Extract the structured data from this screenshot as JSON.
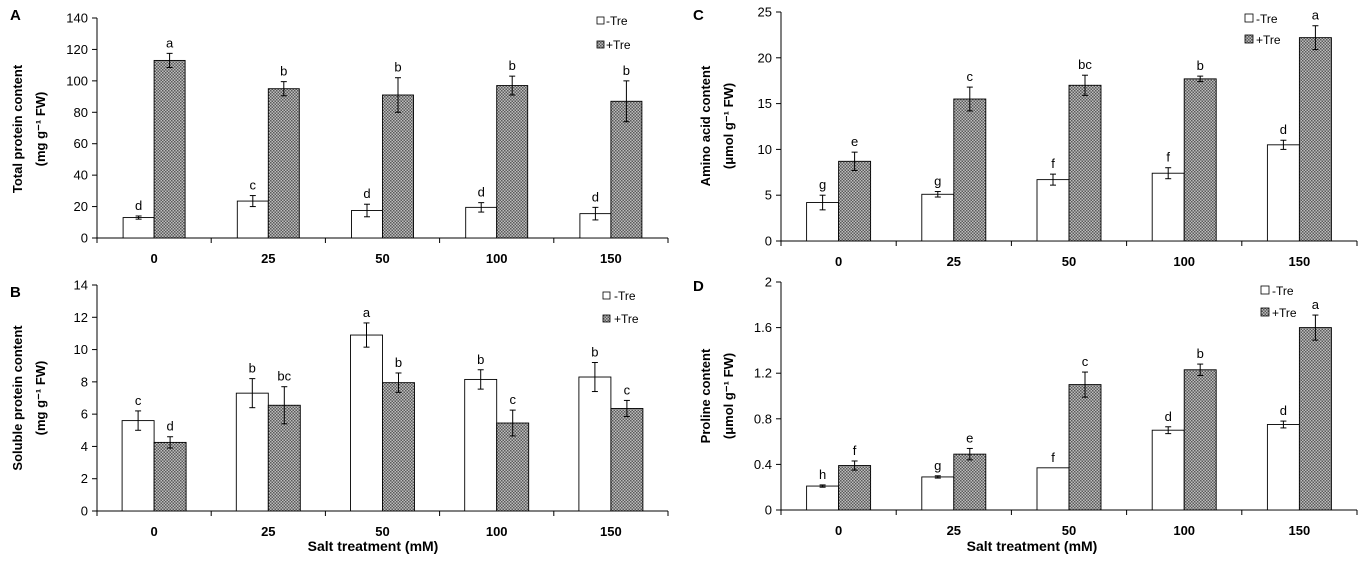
{
  "figure": {
    "xlabel_bottom": "Salt treatment (mM)",
    "legend": {
      "minus": "-Tre",
      "plus": "+Tre"
    },
    "colors": {
      "minus_fill": "#ffffff",
      "plus_fill": "#8c8c8c",
      "axis": "#000000"
    }
  },
  "chart_data": [
    {
      "panel": "A",
      "type": "bar",
      "ylabel": "Total protein content",
      "yunit": "(mg g⁻¹ FW)",
      "xlabel": "",
      "categories": [
        "0",
        "25",
        "50",
        "100",
        "150"
      ],
      "ylim": [
        0,
        140
      ],
      "yticks": [
        "0",
        "20",
        "40",
        "60",
        "80",
        "100",
        "120",
        "140"
      ],
      "legend_position": "top-right",
      "series": [
        {
          "name": "-Tre",
          "values": [
            13,
            23.5,
            17.5,
            19.5,
            15.5
          ],
          "errors": [
            1,
            3.5,
            4,
            3,
            4
          ],
          "letters": [
            "d",
            "c",
            "d",
            "d",
            "d"
          ]
        },
        {
          "name": "+Tre",
          "values": [
            113,
            95,
            91,
            97,
            87
          ],
          "errors": [
            4.5,
            4.5,
            11,
            6,
            13
          ],
          "letters": [
            "a",
            "b",
            "b",
            "b",
            "b"
          ]
        }
      ]
    },
    {
      "panel": "B",
      "type": "bar",
      "ylabel": "Soluble protein content",
      "yunit": "(mg g⁻¹ FW)",
      "xlabel": "Salt treatment (mM)",
      "categories": [
        "0",
        "25",
        "50",
        "100",
        "150"
      ],
      "ylim": [
        0,
        14
      ],
      "yticks": [
        "0",
        "2",
        "4",
        "6",
        "8",
        "10",
        "12",
        "14"
      ],
      "legend_position": "top-right",
      "series": [
        {
          "name": "-Tre",
          "values": [
            5.6,
            7.3,
            10.9,
            8.15,
            8.3
          ],
          "errors": [
            0.6,
            0.9,
            0.75,
            0.6,
            0.9
          ],
          "letters": [
            "c",
            "b",
            "a",
            "b",
            "b"
          ]
        },
        {
          "name": "+Tre",
          "values": [
            4.25,
            6.55,
            7.95,
            5.45,
            6.35
          ],
          "errors": [
            0.35,
            1.15,
            0.6,
            0.8,
            0.5
          ],
          "letters": [
            "d",
            "bc",
            "b",
            "c",
            "c"
          ]
        }
      ]
    },
    {
      "panel": "C",
      "type": "bar",
      "ylabel": "Amino acid content",
      "yunit": "(μmol g⁻¹ FW)",
      "xlabel": "",
      "categories": [
        "0",
        "25",
        "50",
        "100",
        "150"
      ],
      "ylim": [
        0,
        25
      ],
      "yticks": [
        "0",
        "5",
        "10",
        "15",
        "20",
        "25"
      ],
      "legend_position": "top-right",
      "series": [
        {
          "name": "-Tre",
          "values": [
            4.2,
            5.1,
            6.7,
            7.4,
            10.5
          ],
          "errors": [
            0.8,
            0.3,
            0.6,
            0.6,
            0.5
          ],
          "letters": [
            "g",
            "g",
            "f",
            "f",
            "d"
          ]
        },
        {
          "name": "+Tre",
          "values": [
            8.7,
            15.5,
            17.0,
            17.7,
            22.2
          ],
          "errors": [
            1.0,
            1.3,
            1.1,
            0.3,
            1.3
          ],
          "letters": [
            "e",
            "c",
            "bc",
            "b",
            "a"
          ]
        }
      ]
    },
    {
      "panel": "D",
      "type": "bar",
      "ylabel": "Proline content",
      "yunit": "(μmol g⁻¹ FW)",
      "xlabel": "Salt treatment (mM)",
      "categories": [
        "0",
        "25",
        "50",
        "100",
        "150"
      ],
      "ylim": [
        0,
        2
      ],
      "yticks": [
        "0",
        "0.4",
        "0.8",
        "1.2",
        "1.6",
        "2"
      ],
      "legend_position": "top-right",
      "series": [
        {
          "name": "-Tre",
          "values": [
            0.21,
            0.29,
            0.37,
            0.7,
            0.75
          ],
          "errors": [
            0.01,
            0.01,
            0.0,
            0.03,
            0.03
          ],
          "letters": [
            "h",
            "g",
            "f",
            "d",
            "d"
          ]
        },
        {
          "name": "+Tre",
          "values": [
            0.39,
            0.49,
            1.1,
            1.23,
            1.6
          ],
          "errors": [
            0.04,
            0.05,
            0.11,
            0.05,
            0.11
          ],
          "letters": [
            "f",
            "e",
            "c",
            "b",
            "a"
          ]
        }
      ]
    }
  ]
}
